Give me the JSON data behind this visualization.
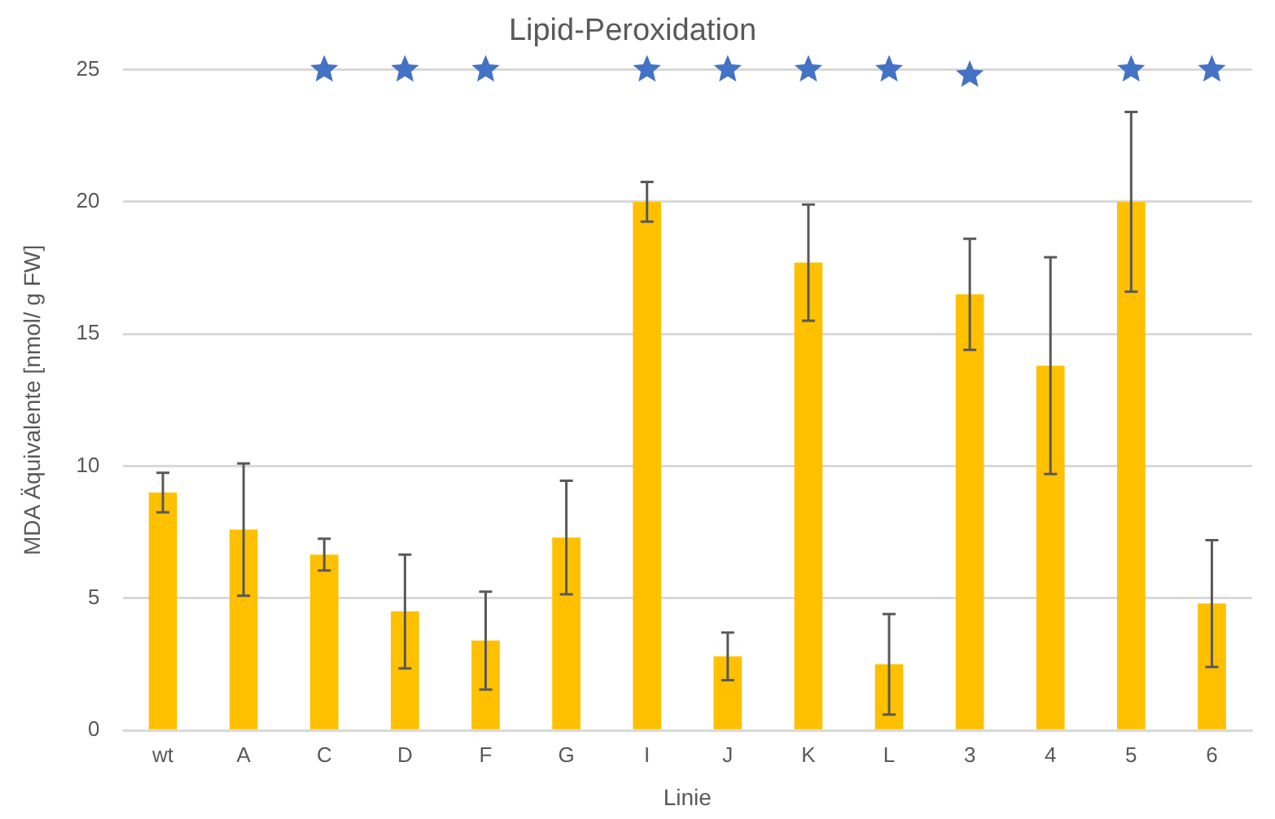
{
  "chart_data": {
    "type": "bar",
    "title": "Lipid-Peroxidation",
    "xlabel": "Linie",
    "ylabel": "MDA Äquivalente [nmol/ g FW]",
    "categories": [
      "wt",
      "A",
      "C",
      "D",
      "F",
      "G",
      "I",
      "J",
      "K",
      "L",
      "3",
      "4",
      "5",
      "6"
    ],
    "series": [
      {
        "color": "#ffc000",
        "values": [
          9.0,
          7.6,
          6.65,
          4.5,
          3.4,
          7.3,
          20.0,
          2.8,
          17.7,
          2.5,
          16.5,
          13.8,
          20.0,
          4.8
        ],
        "errors": [
          0.75,
          2.5,
          0.6,
          2.15,
          1.85,
          2.15,
          0.75,
          0.9,
          2.2,
          1.9,
          2.1,
          4.1,
          3.4,
          2.4
        ]
      },
      {
        "type": "scatter",
        "color": "#4472c4",
        "marker": "star",
        "x": [
          "C",
          "D",
          "F",
          "I",
          "J",
          "K",
          "L",
          "3",
          "5",
          "6"
        ],
        "values": [
          25,
          25,
          25,
          25,
          25,
          25,
          25,
          24.8,
          25,
          25
        ]
      }
    ],
    "ylim": [
      0,
      25
    ],
    "yticks": [
      0,
      5,
      10,
      15,
      20,
      25
    ],
    "grid": "y",
    "legend": false
  }
}
